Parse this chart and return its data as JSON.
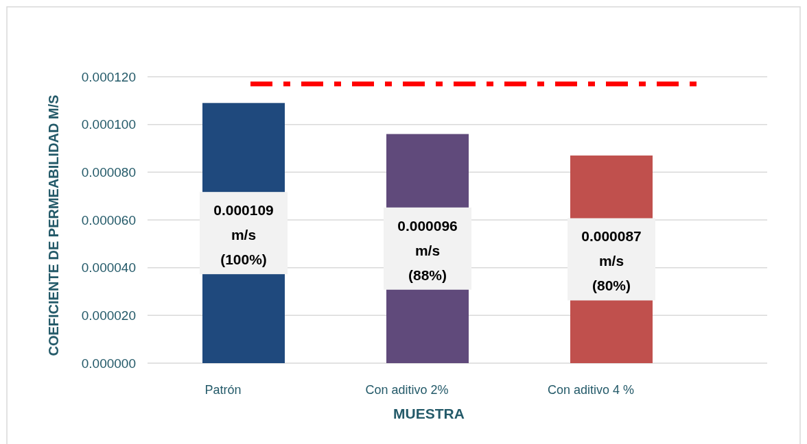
{
  "chart_data": {
    "type": "bar",
    "xlabel": "MUESTRA",
    "ylabel": "COEFICIENTE DE PERMEABILIDAD M/S",
    "categories": [
      "Patrón",
      "Con aditivo 2%",
      "Con aditivo 4 %"
    ],
    "values": [
      0.000109,
      9.6e-05,
      8.7e-05
    ],
    "colors": [
      "#1f497d",
      "#604a7b",
      "#c0504d"
    ],
    "value_labels": [
      "0.000109 m/s (100%)",
      "0.000096 m/s (88%)",
      "0.000087 m/s (80%)"
    ],
    "ylim": [
      0,
      0.00012
    ],
    "yticks": [
      {
        "value": 0,
        "label": "0.000000"
      },
      {
        "value": 2e-05,
        "label": "0.000020"
      },
      {
        "value": 4e-05,
        "label": "0.000040"
      },
      {
        "value": 6e-05,
        "label": "0.000060"
      },
      {
        "value": 8e-05,
        "label": "0.000080"
      },
      {
        "value": 0.0001,
        "label": "0.000100"
      },
      {
        "value": 0.00012,
        "label": "0.000120"
      }
    ],
    "grid": "y",
    "ref_lines": [
      {
        "axis": "y",
        "value": 0.000117,
        "color": "#ff0000",
        "line_style": "dashdot"
      }
    ]
  }
}
